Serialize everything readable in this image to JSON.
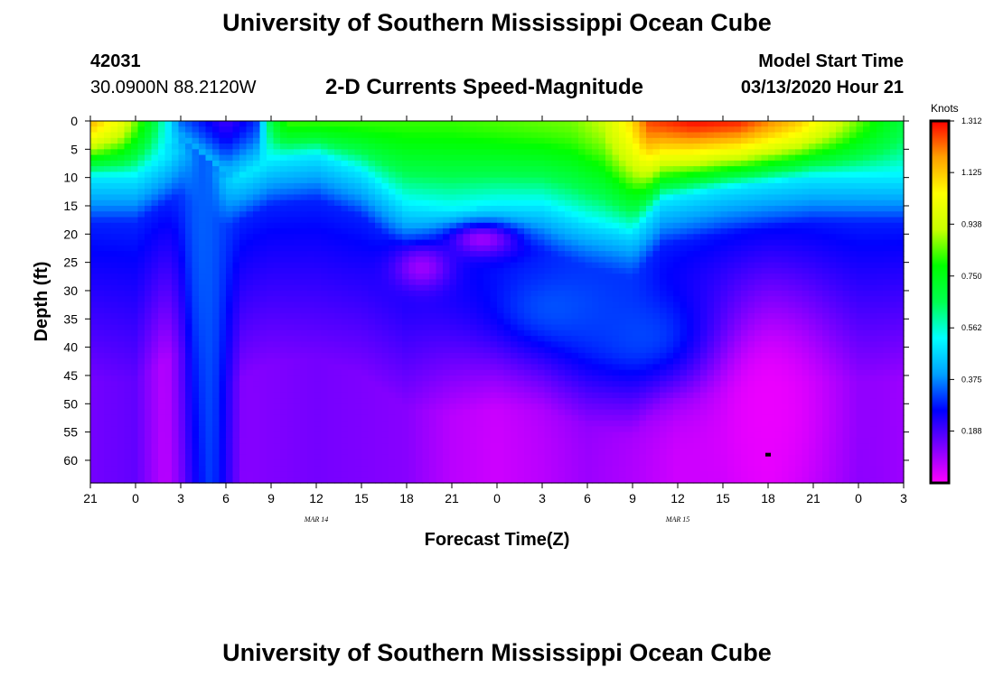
{
  "header": {
    "main_title": "University of Southern Mississippi Ocean Cube",
    "station_id": "42031",
    "station_coords": "30.0900N 88.2120W",
    "chart_title": "2-D Currents Speed-Magnitude",
    "model_label": "Model Start Time",
    "model_time": "03/13/2020 Hour 21"
  },
  "footer": {
    "title": "University of Southern Mississippi Ocean Cube"
  },
  "chart_data": {
    "type": "heatmap",
    "title": "2-D Currents Speed-Magnitude",
    "xlabel": "Forecast Time(Z)",
    "ylabel": "Depth (ft)",
    "x_unit": "hours since model start",
    "xlim": [
      0,
      54
    ],
    "ylim": [
      64,
      0
    ],
    "x_ticks": [
      {
        "hour": 0,
        "label": "21"
      },
      {
        "hour": 3,
        "label": "0"
      },
      {
        "hour": 6,
        "label": "3"
      },
      {
        "hour": 9,
        "label": "6"
      },
      {
        "hour": 12,
        "label": "9"
      },
      {
        "hour": 15,
        "label": "12"
      },
      {
        "hour": 18,
        "label": "15"
      },
      {
        "hour": 21,
        "label": "18"
      },
      {
        "hour": 24,
        "label": "21"
      },
      {
        "hour": 27,
        "label": "0"
      },
      {
        "hour": 30,
        "label": "3"
      },
      {
        "hour": 33,
        "label": "6"
      },
      {
        "hour": 36,
        "label": "9"
      },
      {
        "hour": 39,
        "label": "12"
      },
      {
        "hour": 42,
        "label": "15"
      },
      {
        "hour": 45,
        "label": "18"
      },
      {
        "hour": 48,
        "label": "21"
      },
      {
        "hour": 51,
        "label": "0"
      },
      {
        "hour": 54,
        "label": "3"
      }
    ],
    "date_labels": [
      {
        "hour": 15,
        "label": "MAR 14"
      },
      {
        "hour": 39,
        "label": "MAR 15"
      }
    ],
    "y_ticks": [
      0,
      5,
      10,
      15,
      20,
      25,
      30,
      35,
      40,
      45,
      50,
      55,
      60
    ],
    "colorbar": {
      "unit": "Knots",
      "min": 0,
      "max": 1.312,
      "tick_labels": [
        "1.312",
        "1.125",
        "0.938",
        "0.750",
        "0.562",
        "0.375",
        "0.188"
      ],
      "colors": [
        "#ff00ff",
        "#7d00ff",
        "#0000ff",
        "#00a0ff",
        "#00ffff",
        "#00ff50",
        "#00ff00",
        "#c8ff00",
        "#ffff00",
        "#ffa000",
        "#ff0000"
      ]
    },
    "surface_speed_knots": [
      {
        "hour": 0,
        "v": 1.15
      },
      {
        "hour": 2,
        "v": 1.0
      },
      {
        "hour": 4,
        "v": 0.72
      },
      {
        "hour": 6,
        "v": 0.35
      },
      {
        "hour": 7,
        "v": 0.3
      },
      {
        "hour": 9,
        "v": 0.2
      },
      {
        "hour": 11,
        "v": 0.3
      },
      {
        "hour": 12,
        "v": 0.68
      },
      {
        "hour": 13,
        "v": 0.82
      },
      {
        "hour": 16,
        "v": 0.82
      },
      {
        "hour": 20,
        "v": 0.82
      },
      {
        "hour": 24,
        "v": 0.82
      },
      {
        "hour": 28,
        "v": 0.84
      },
      {
        "hour": 32,
        "v": 0.86
      },
      {
        "hour": 34,
        "v": 0.92
      },
      {
        "hour": 36,
        "v": 1.1
      },
      {
        "hour": 37,
        "v": 1.25
      },
      {
        "hour": 40,
        "v": 1.3
      },
      {
        "hour": 43,
        "v": 1.28
      },
      {
        "hour": 47,
        "v": 1.12
      },
      {
        "hour": 51,
        "v": 0.85
      },
      {
        "hour": 54,
        "v": 0.68
      }
    ],
    "mixed_layer_depth_ft": [
      {
        "hour": 0,
        "d": 10
      },
      {
        "hour": 3,
        "d": 10
      },
      {
        "hour": 6,
        "d": 5
      },
      {
        "hour": 9,
        "d": 11
      },
      {
        "hour": 12,
        "d": 7
      },
      {
        "hour": 15,
        "d": 6
      },
      {
        "hour": 18,
        "d": 9
      },
      {
        "hour": 21,
        "d": 15
      },
      {
        "hour": 24,
        "d": 16
      },
      {
        "hour": 27,
        "d": 15
      },
      {
        "hour": 30,
        "d": 15
      },
      {
        "hour": 33,
        "d": 18
      },
      {
        "hour": 36,
        "d": 20
      },
      {
        "hour": 38,
        "d": 14
      },
      {
        "hour": 42,
        "d": 12
      },
      {
        "hour": 45,
        "d": 11
      },
      {
        "hour": 48,
        "d": 10
      },
      {
        "hour": 51,
        "d": 10
      },
      {
        "hour": 54,
        "d": 10
      }
    ],
    "deep_speed_knots": [
      {
        "hour": 0,
        "v": 0.14
      },
      {
        "hour": 3,
        "v": 0.16
      },
      {
        "hour": 5,
        "v": 0.06
      },
      {
        "hour": 6,
        "v": 0.1
      },
      {
        "hour": 8,
        "v": 0.3
      },
      {
        "hour": 10,
        "v": 0.12
      },
      {
        "hour": 15,
        "v": 0.14
      },
      {
        "hour": 21,
        "v": 0.12
      },
      {
        "hour": 24,
        "v": 0.07
      },
      {
        "hour": 27,
        "v": 0.05
      },
      {
        "hour": 30,
        "v": 0.07
      },
      {
        "hour": 33,
        "v": 0.1
      },
      {
        "hour": 36,
        "v": 0.08
      },
      {
        "hour": 39,
        "v": 0.05
      },
      {
        "hour": 42,
        "v": 0.06
      },
      {
        "hour": 45,
        "v": 0.03
      },
      {
        "hour": 48,
        "v": 0.08
      },
      {
        "hour": 51,
        "v": 0.12
      },
      {
        "hour": 54,
        "v": 0.1
      }
    ],
    "features": [
      {
        "kind": "jet",
        "hour": 7.5,
        "depth": 10,
        "radius_h": 1.5,
        "radius_d": 55,
        "speed": 0.34
      },
      {
        "kind": "core",
        "hour": 31,
        "depth": 33,
        "radius_h": 5,
        "radius_d": 8,
        "speed": 0.33
      },
      {
        "kind": "core",
        "hour": 37,
        "depth": 38,
        "radius_h": 6,
        "radius_d": 10,
        "speed": 0.32
      },
      {
        "kind": "weak",
        "hour": 26,
        "depth": 21,
        "radius_h": 2.5,
        "radius_d": 3,
        "speed": 0.1
      },
      {
        "kind": "weak",
        "hour": 22,
        "depth": 26,
        "radius_h": 2,
        "radius_d": 4,
        "speed": 0.1
      },
      {
        "kind": "weak",
        "hour": 45,
        "depth": 50,
        "radius_h": 4,
        "radius_d": 18,
        "speed": 0.02
      }
    ],
    "marker": {
      "hour": 45,
      "depth": 59
    }
  }
}
